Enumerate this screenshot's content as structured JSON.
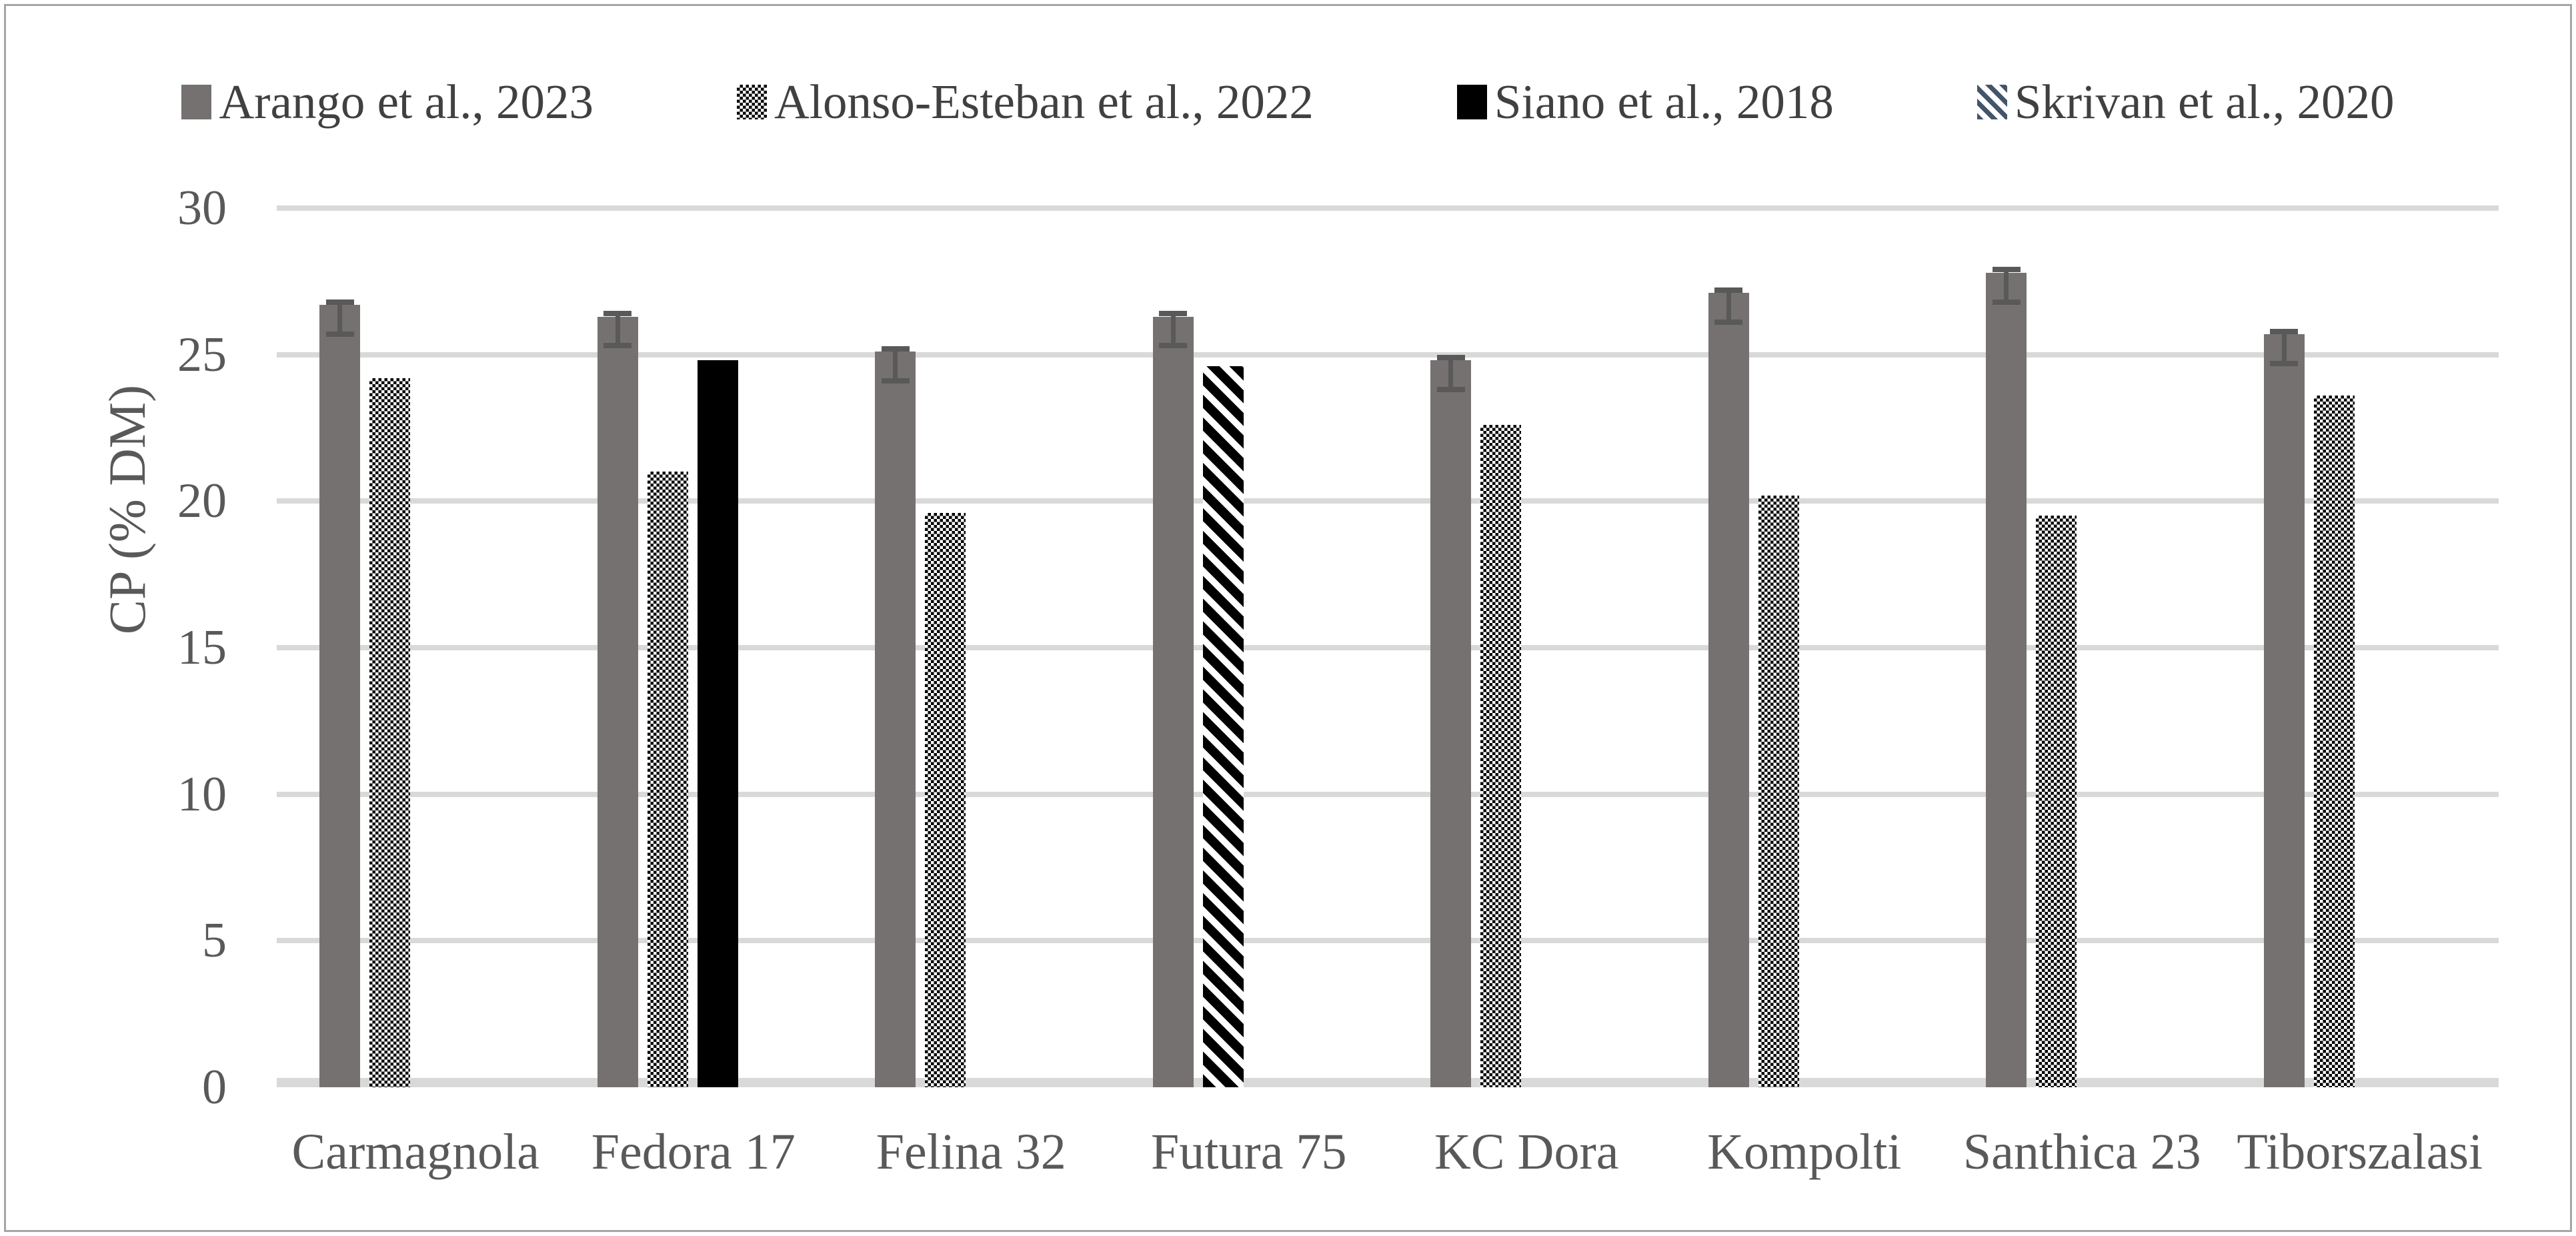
{
  "figure": {
    "background": "#FFFFFF",
    "border_color": "#A6A6A6"
  },
  "legend": {
    "position": "top",
    "items": [
      {
        "label": "Arango et al., 2023",
        "marker": "solid-gray",
        "color": "#767171"
      },
      {
        "label": "Alonso-Esteban et al., 2022",
        "marker": "checkerboard",
        "color": "#000000"
      },
      {
        "label": "Siano et al., 2018",
        "marker": "solid-black",
        "color": "#000000"
      },
      {
        "label": "Skrivan et al., 2020",
        "marker": "diagonal-stripes",
        "color": "#44546A"
      }
    ]
  },
  "chart_data": {
    "type": "bar",
    "title": "",
    "xlabel": "",
    "ylabel": "CP (% DM)",
    "ylim": [
      0,
      30
    ],
    "yticks": [
      0,
      5,
      10,
      15,
      20,
      25,
      30
    ],
    "grid": true,
    "legend_position": "top",
    "categories": [
      "Carmagnola",
      "Fedora 17",
      "Felina 32",
      "Futura 75",
      "KC Dora",
      "Kompolti",
      "Santhica 23",
      "Tiborszalasi"
    ],
    "series": [
      {
        "name": "Arango et al., 2023",
        "pattern": "solid-gray",
        "color": "#767171",
        "error_bars": {
          "up": 0.1,
          "down": 1.0,
          "color": "#595959"
        },
        "values": [
          26.7,
          26.3,
          25.1,
          26.3,
          24.8,
          27.1,
          27.8,
          25.7
        ]
      },
      {
        "name": "Alonso-Esteban et al., 2022",
        "pattern": "checkerboard",
        "color": "#000000",
        "values": [
          24.2,
          21.0,
          19.6,
          null,
          22.6,
          20.2,
          19.5,
          23.6
        ]
      },
      {
        "name": "Siano et al., 2018",
        "pattern": "solid-black",
        "color": "#000000",
        "values": [
          null,
          24.8,
          null,
          null,
          null,
          null,
          null,
          null
        ]
      },
      {
        "name": "Skrivan et al., 2020",
        "pattern": "diagonal-stripes",
        "color": "#000000",
        "values": [
          null,
          null,
          null,
          24.6,
          null,
          null,
          null,
          null
        ]
      }
    ]
  },
  "axis_style": {
    "tick_color": "#595959",
    "gridline_color": "#D9D9D9"
  }
}
